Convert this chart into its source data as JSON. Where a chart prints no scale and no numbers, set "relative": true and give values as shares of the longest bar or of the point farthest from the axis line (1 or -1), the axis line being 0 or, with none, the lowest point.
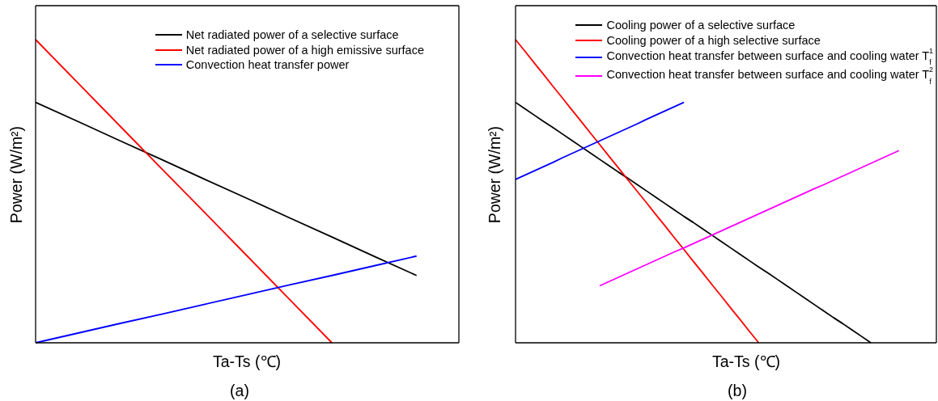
{
  "chart_data": [
    {
      "type": "line",
      "relative": true,
      "xlabel": "Ta-Ts (℃)",
      "ylabel": "Power (W/m²)",
      "annotations": [
        "(a)"
      ],
      "legend": "top right",
      "categories": [
        null,
        null,
        null,
        null,
        null,
        null,
        null,
        null,
        null,
        null,
        null
      ],
      "series": [
        {
          "name": "Net radiated power of a selective surface",
          "color": "#000000",
          "values": [
            0.793,
            0.73,
            0.666,
            0.603,
            0.539,
            0.476,
            0.412,
            0.349,
            0.285,
            0.222,
            null
          ]
        },
        {
          "name": "Net radiated power of a high emissive surface",
          "color": "#ff0000",
          "values": [
            1,
            0.857,
            0.714,
            0.571,
            0.429,
            0.286,
            0.143,
            0,
            null,
            null,
            null
          ]
        },
        {
          "name": "Convection heat transfer power",
          "color": "#0000ff",
          "values": [
            0,
            0.032,
            0.064,
            0.095,
            0.127,
            0.159,
            0.191,
            0.222,
            0.254,
            0.286,
            null
          ]
        }
      ]
    },
    {
      "type": "line",
      "relative": true,
      "xlabel": "Ta-Ts (℃)",
      "ylabel": "Power (W/m²)",
      "annotations": [
        "(b)"
      ],
      "legend": "top right",
      "categories": [
        null,
        null,
        null,
        null,
        null,
        null,
        null,
        null,
        null,
        null,
        null,
        null,
        null,
        null,
        null,
        null,
        null,
        null,
        null,
        null,
        null,
        null,
        null,
        null,
        null,
        null,
        null,
        null,
        null,
        null,
        null,
        null,
        null,
        null,
        null,
        null,
        null,
        null,
        null,
        null,
        null,
        null,
        null,
        null,
        null,
        null
      ],
      "series": [
        {
          "name": "Cooling power of a selective surface",
          "color": "#000000",
          "values": [
            0.793,
            0.772,
            0.751,
            0.73,
            0.71,
            0.689,
            0.668,
            0.647,
            0.626,
            0.605,
            0.584,
            0.563,
            0.543,
            0.522,
            0.501,
            0.48,
            0.459,
            0.438,
            0.417,
            0.397,
            0.376,
            0.355,
            0.334,
            0.313,
            0.292,
            0.271,
            0.25,
            0.23,
            0.209,
            0.188,
            0.167,
            0.146,
            0.125,
            0.104,
            0.083,
            0.063,
            0.042,
            0.021,
            0,
            null,
            null,
            null,
            null,
            null,
            null,
            null
          ]
        },
        {
          "name": "Cooling power of a high selective surface",
          "color": "#ff0000",
          "values": [
            1,
            0.962,
            0.923,
            0.885,
            0.846,
            0.808,
            0.769,
            0.731,
            0.692,
            0.654,
            0.615,
            0.577,
            0.538,
            0.5,
            0.462,
            0.423,
            0.385,
            0.346,
            0.308,
            0.269,
            0.231,
            0.192,
            0.154,
            0.115,
            0.077,
            0.038,
            0,
            null,
            null,
            null,
            null,
            null,
            null,
            null,
            null,
            null,
            null,
            null,
            null,
            null,
            null,
            null,
            null,
            null,
            null,
            null
          ]
        },
        {
          "name": "Convection heat transfer between surface and cooling water T$_{f}$$^{1}$",
          "color": "#0000ff",
          "values": [
            0.539,
            0.553,
            0.567,
            0.581,
            0.595,
            0.61,
            0.624,
            0.638,
            0.652,
            0.666,
            0.68,
            0.694,
            0.708,
            0.722,
            0.737,
            0.751,
            0.765,
            0.779,
            0.793,
            null,
            null,
            null,
            null,
            null,
            null,
            null,
            null,
            null,
            null,
            null,
            null,
            null,
            null,
            null,
            null,
            null,
            null,
            null,
            null,
            null,
            null,
            null,
            null,
            null,
            null,
            null
          ]
        },
        {
          "name": "Convection heat transfer between surface and cooling water T$_{f}$$^{2}$",
          "color": "#ff00ff",
          "values": [
            null,
            null,
            null,
            null,
            null,
            null,
            null,
            null,
            null,
            0.188,
            0.202,
            0.216,
            0.23,
            0.244,
            0.258,
            0.272,
            0.286,
            0.3,
            0.313,
            0.327,
            0.341,
            0.355,
            0.369,
            0.383,
            0.397,
            0.411,
            0.425,
            0.439,
            0.453,
            0.467,
            0.481,
            0.495,
            0.509,
            0.522,
            0.536,
            0.55,
            0.564,
            0.578,
            0.592,
            0.606,
            0.62,
            0.634,
            null,
            null,
            null,
            null
          ]
        }
      ]
    }
  ]
}
